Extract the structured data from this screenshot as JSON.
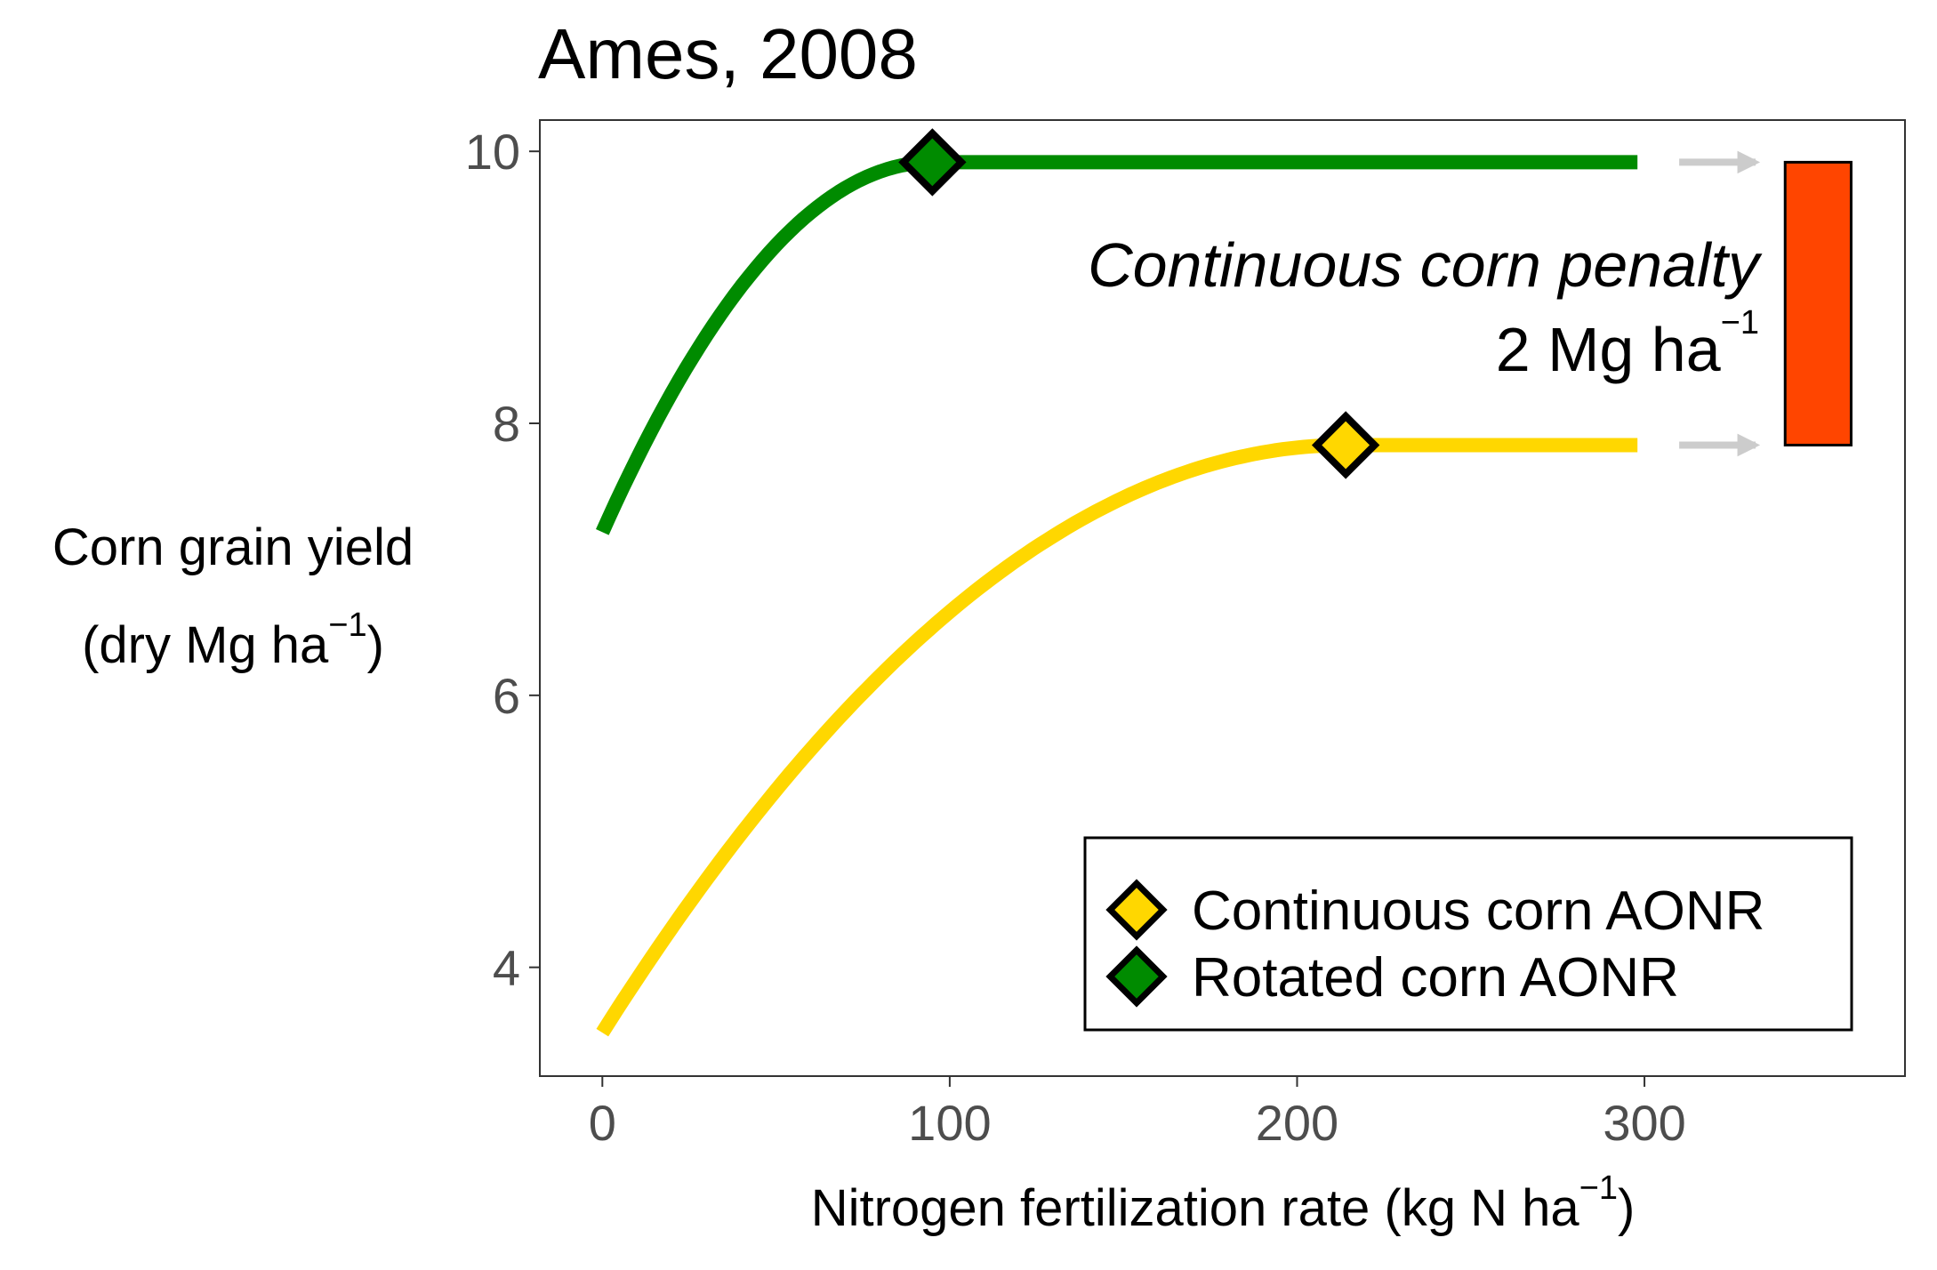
{
  "chart_data": {
    "type": "line",
    "title": "Ames, 2008",
    "xlabel": {
      "main": "Nitrogen fertilization rate (kg N ha",
      "sup": "−1",
      "close": ")"
    },
    "ylabel": {
      "line1": "Corn grain yield",
      "line2_main": "(dry Mg  ha",
      "line2_sup": "−1",
      "line2_close": ")"
    },
    "xlim": [
      -18,
      375
    ],
    "ylim": [
      3.2,
      10.23
    ],
    "x_ticks": [
      0,
      100,
      200,
      300
    ],
    "y_ticks": [
      4,
      6,
      8,
      10
    ],
    "grid": false,
    "series": [
      {
        "name": "Continuous corn AONR",
        "color": "#FFD700",
        "intercept": 3.52,
        "aonr_x": 214,
        "plateau_y": 7.84,
        "x_max": 298
      },
      {
        "name": "Rotated corn AONR",
        "color": "#008B00",
        "intercept": 7.2,
        "aonr_x": 95,
        "plateau_y": 9.92,
        "x_max": 298
      }
    ],
    "annotation": {
      "line1": "Continuous corn penalty",
      "line2_main": "2 Mg ha",
      "line2_sup": "−1"
    },
    "penalty_bar": {
      "x_center": 350,
      "half_width": 9.5,
      "ymin": 7.84,
      "ymax": 9.92,
      "color": "#FF4500"
    },
    "arrows": {
      "x_start": 310,
      "x_end": 332,
      "color": "#CCCCCC"
    },
    "legend": {
      "position": "bottom-right",
      "entries": [
        "Continuous corn AONR",
        "Rotated corn AONR"
      ]
    }
  }
}
